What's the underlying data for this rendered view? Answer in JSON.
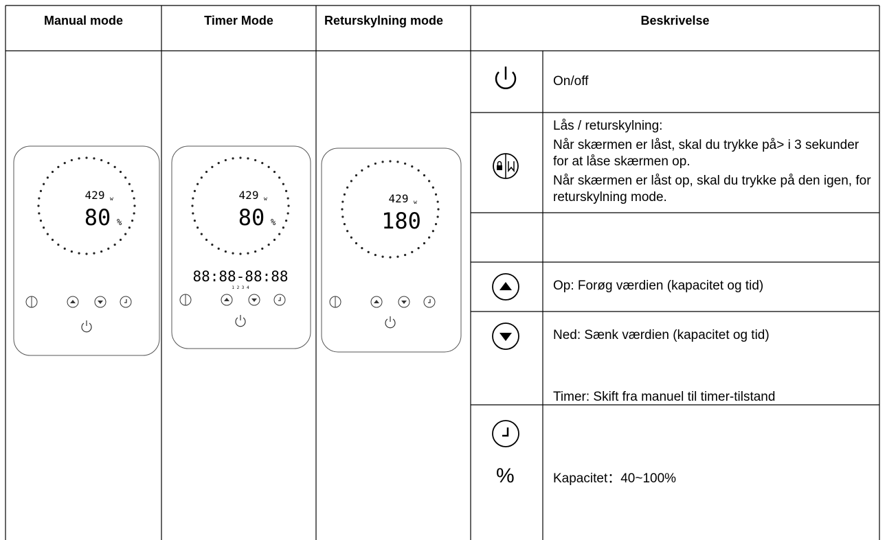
{
  "header": {
    "columns": [
      "Manual mode",
      "Timer Mode",
      "Returskylning mode",
      "Beskrivelse"
    ]
  },
  "panels": [
    {
      "power": "429",
      "power_unit": "w",
      "main": "80",
      "main_unit": "%"
    },
    {
      "power": "429",
      "power_unit": "w",
      "main": "80",
      "main_unit": "%",
      "timer": "88:88-88:88",
      "slots": "1 2 3 4"
    },
    {
      "power": "429",
      "power_unit": "w",
      "main": "180"
    }
  ],
  "rows": [
    {
      "description": [
        "On/off"
      ]
    },
    {
      "description": [
        "Lås / returskylning:",
        "Når skærmen er låst, skal du trykke på> i 3 sekunder for at låse skærmen op.",
        "Når skærmen er låst op, skal du trykke på den igen, for returskylning mode."
      ]
    },
    {
      "description": [
        "Op: Forøg værdien (kapacitet og tid)"
      ]
    },
    {
      "description": [
        "Ned: Sænk værdien (kapacitet og tid)"
      ]
    },
    {
      "description": [
        "Timer: Skift fra manuel til timer-tilstand"
      ]
    },
    {
      "icon_text": "%",
      "description": [
        "Kapacitet：40~100%"
      ]
    }
  ]
}
